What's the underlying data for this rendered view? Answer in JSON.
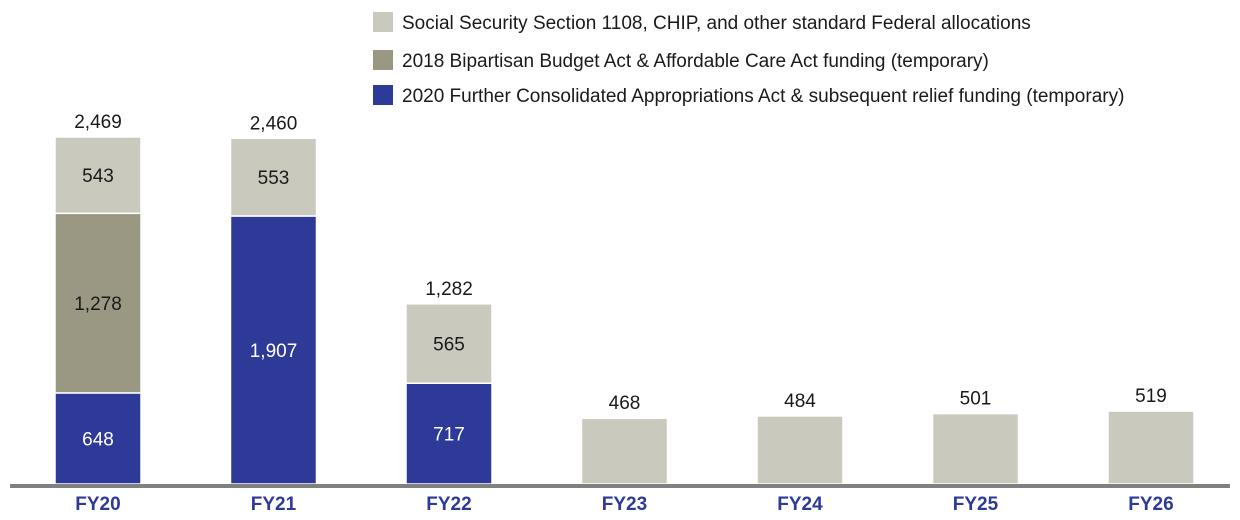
{
  "chart_data": {
    "type": "bar",
    "stacked": true,
    "categories": [
      "FY20",
      "FY21",
      "FY22",
      "FY23",
      "FY24",
      "FY25",
      "FY26"
    ],
    "series": [
      {
        "name": "2020 Further Consolidated Appropriations Act & subsequent relief funding (temporary)",
        "color": "#2e3a97",
        "values": [
          648,
          1907,
          717,
          null,
          null,
          null,
          null
        ]
      },
      {
        "name": "2018 Bipartisan Budget Act & Affordable Care Act funding (temporary)",
        "color": "#9a9783",
        "values": [
          1278,
          null,
          null,
          null,
          null,
          null,
          null
        ]
      },
      {
        "name": "Social Security Section 1108, CHIP, and other standard Federal allocations",
        "color": "#cac9bd",
        "values": [
          543,
          553,
          565,
          468,
          484,
          501,
          519
        ]
      }
    ],
    "segment_labels": [
      [
        "648",
        "1,907",
        "717",
        null,
        null,
        null,
        null
      ],
      [
        "1,278",
        null,
        null,
        null,
        null,
        null,
        null
      ],
      [
        "543",
        "553",
        "565",
        null,
        null,
        null,
        null
      ]
    ],
    "totals": [
      2469,
      2460,
      1282,
      468,
      484,
      501,
      519
    ],
    "total_labels": [
      "2,469",
      "2,460",
      "1,282",
      "468",
      "484",
      "501",
      "519"
    ],
    "legend": {
      "position": "top-right",
      "entries": [
        "Social Security Section 1108, CHIP, and other standard Federal allocations",
        "2018 Bipartisan Budget Act & Affordable Care Act funding (temporary)",
        "2020 Further Consolidated Appropriations Act & subsequent relief funding (temporary)"
      ]
    },
    "ylim": [
      0,
      2469
    ],
    "grid": false,
    "colors": {
      "axis": "#808080",
      "category_label": "#2e3a97",
      "dark_segment_text": "#ffffff",
      "light_segment_text": "#1a1a1a"
    }
  }
}
